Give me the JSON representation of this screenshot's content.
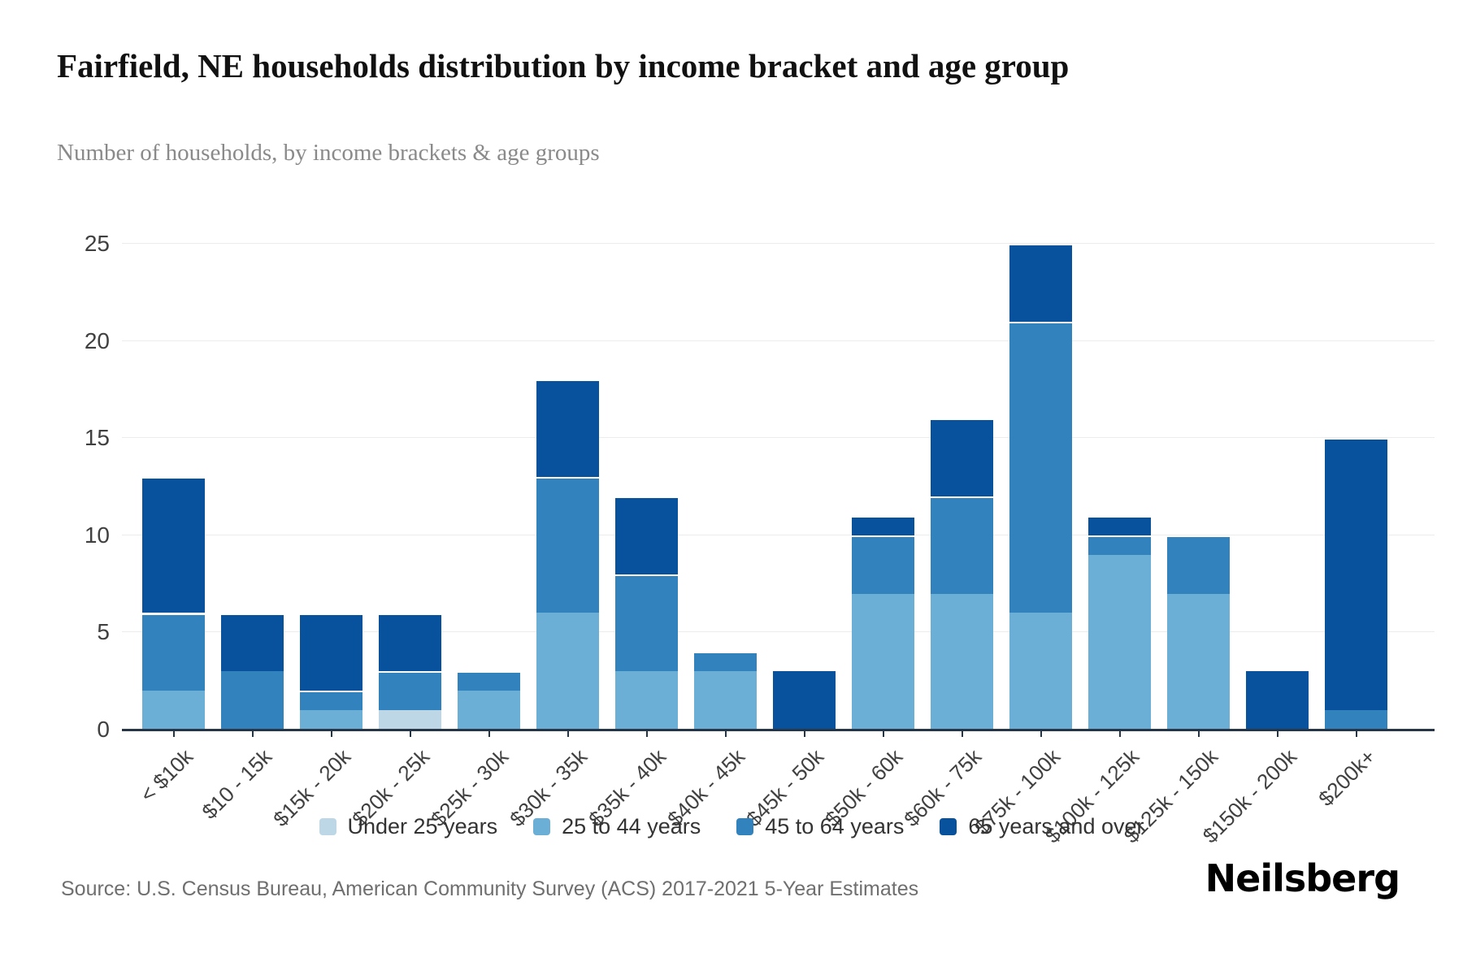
{
  "header": {
    "title": "Fairfield, NE households distribution by income bracket and age group",
    "subtitle": "Number of households, by income brackets & age groups"
  },
  "footer": {
    "source": "Source: U.S. Census Bureau, American Community Survey (ACS) 2017-2021 5-Year Estimates",
    "brand": "Neilsberg"
  },
  "chart_data": {
    "type": "bar",
    "stacked": true,
    "title": "Fairfield, NE households distribution by income bracket and age group",
    "subtitle": "Number of households, by income brackets & age groups",
    "categories": [
      "< $10k",
      "$10 - 15k",
      "$15k - 20k",
      "$20k - 25k",
      "$25k - 30k",
      "$30k - 35k",
      "$35k - 40k",
      "$40k - 45k",
      "$45k - 50k",
      "$50k - 60k",
      "$60k - 75k",
      "$75k - 100k",
      "$100k - 125k",
      "$125k - 150k",
      "$150k - 200k",
      "$200k+"
    ],
    "series": [
      {
        "name": "Under 25 years",
        "color": "#bdd7e7",
        "values": [
          0,
          0,
          0,
          1,
          0,
          0,
          0,
          0,
          0,
          0,
          0,
          0,
          0,
          0,
          0,
          0
        ]
      },
      {
        "name": "25 to 44 years",
        "color": "#6baed6",
        "values": [
          2,
          0,
          1,
          0,
          2,
          6,
          3,
          3,
          0,
          7,
          7,
          6,
          9,
          7,
          0,
          0
        ]
      },
      {
        "name": "45 to 64 years",
        "color": "#3182bd",
        "values": [
          4,
          3,
          1,
          2,
          1,
          7,
          5,
          1,
          0,
          3,
          5,
          15,
          1,
          3,
          0,
          1
        ]
      },
      {
        "name": "65 years and over",
        "color": "#08519c",
        "values": [
          7,
          3,
          4,
          3,
          0,
          5,
          4,
          0,
          3,
          1,
          4,
          4,
          1,
          0,
          3,
          14
        ]
      }
    ],
    "totals": [
      13,
      6,
      6,
      6,
      3,
      18,
      12,
      4,
      3,
      11,
      16,
      25,
      11,
      10,
      3,
      15
    ],
    "ylim": [
      0,
      25
    ],
    "yticks": [
      0,
      5,
      10,
      15,
      20,
      25
    ],
    "grid": true,
    "legend_position": "bottom"
  }
}
